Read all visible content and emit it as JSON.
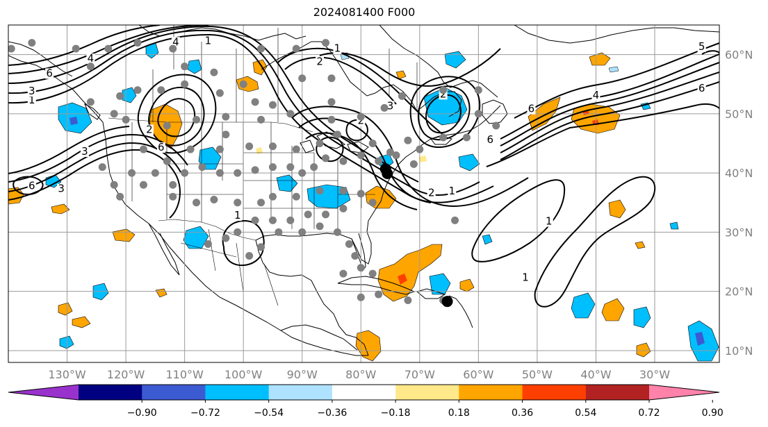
{
  "title": "2024081400 F000",
  "map": {
    "lon_range": [
      -140,
      -19
    ],
    "lat_range": [
      8,
      65
    ],
    "lon_ticks": [
      -130,
      -120,
      -110,
      -100,
      -90,
      -80,
      -70,
      -60,
      -50,
      -40,
      -30
    ],
    "lat_ticks": [
      10,
      20,
      30,
      40,
      50,
      60
    ],
    "lon_labels": [
      "130°W",
      "120°W",
      "110°W",
      "100°W",
      "90°W",
      "80°W",
      "70°W",
      "60°W",
      "50°W",
      "40°W",
      "30°W"
    ],
    "lat_labels": [
      "10°N",
      "20°N",
      "30°N",
      "40°N",
      "50°N",
      "60°N"
    ],
    "grid": true,
    "contour_color": "#000000",
    "contour_labels": [
      {
        "text": "1",
        "lon": -136,
        "lat": 52
      },
      {
        "text": "3",
        "lon": -136,
        "lat": 53.5
      },
      {
        "text": "6",
        "lon": -133,
        "lat": 56.5
      },
      {
        "text": "4",
        "lon": -126,
        "lat": 59
      },
      {
        "text": "1",
        "lon": -106,
        "lat": 62
      },
      {
        "text": "4",
        "lon": -111.5,
        "lat": 61.8
      },
      {
        "text": "2",
        "lon": -116,
        "lat": 47
      },
      {
        "text": "6",
        "lon": -114,
        "lat": 44
      },
      {
        "text": "3",
        "lon": -127,
        "lat": 43.3
      },
      {
        "text": "6",
        "lon": -136,
        "lat": 37.5
      },
      {
        "text": "3",
        "lon": -131,
        "lat": 37
      },
      {
        "text": "2",
        "lon": -87,
        "lat": 58.5
      },
      {
        "text": "1",
        "lon": -84,
        "lat": 60.7
      },
      {
        "text": "2",
        "lon": -80,
        "lat": 48.5
      },
      {
        "text": "3",
        "lon": -75,
        "lat": 51
      },
      {
        "text": "2",
        "lon": -66,
        "lat": 53
      },
      {
        "text": "6",
        "lon": -58,
        "lat": 45.3
      },
      {
        "text": "2",
        "lon": -68,
        "lat": 36.3
      },
      {
        "text": "1",
        "lon": -64.5,
        "lat": 36.6
      },
      {
        "text": "1",
        "lon": -101,
        "lat": 32.5
      },
      {
        "text": "1",
        "lon": -48,
        "lat": 31.5
      },
      {
        "text": "1",
        "lon": -52,
        "lat": 22
      },
      {
        "text": "6",
        "lon": -51,
        "lat": 50.5
      },
      {
        "text": "4",
        "lon": -40,
        "lat": 52.8
      },
      {
        "text": "6",
        "lon": -22,
        "lat": 54
      },
      {
        "text": "5",
        "lon": -22,
        "lat": 61
      }
    ],
    "station_color": "#808080",
    "stations": [
      [
        -139.5,
        61
      ],
      [
        -136,
        62
      ],
      [
        -128.5,
        61
      ],
      [
        -126,
        58
      ],
      [
        -123,
        61
      ],
      [
        -118,
        62
      ],
      [
        -112,
        61
      ],
      [
        -110,
        58
      ],
      [
        -105,
        57
      ],
      [
        -97,
        61
      ],
      [
        -91,
        61
      ],
      [
        -90,
        56
      ],
      [
        -86,
        62
      ],
      [
        -85,
        56
      ],
      [
        -100,
        55
      ],
      [
        -98,
        52
      ],
      [
        -95,
        51.5
      ],
      [
        -104,
        53.5
      ],
      [
        -110,
        55
      ],
      [
        -114,
        54
      ],
      [
        -118,
        54
      ],
      [
        -121,
        53
      ],
      [
        -126,
        52
      ],
      [
        -122,
        50
      ],
      [
        -120,
        49
      ],
      [
        -113,
        48
      ],
      [
        -108,
        49
      ],
      [
        -103,
        49.5
      ],
      [
        -97,
        49
      ],
      [
        -92,
        50
      ],
      [
        -85,
        49
      ],
      [
        -80,
        49.5
      ],
      [
        -76,
        51
      ],
      [
        -73,
        53
      ],
      [
        -66,
        54
      ],
      [
        -60,
        54
      ],
      [
        -60,
        50
      ],
      [
        -57,
        48
      ],
      [
        -62,
        46
      ],
      [
        -66,
        46
      ],
      [
        -70,
        44
      ],
      [
        -74,
        43
      ],
      [
        -77,
        42
      ],
      [
        -80,
        43
      ],
      [
        -83,
        42
      ],
      [
        -86,
        42.5
      ],
      [
        -88,
        41
      ],
      [
        -90,
        40
      ],
      [
        -92,
        41
      ],
      [
        -95,
        41
      ],
      [
        -98,
        40.5
      ],
      [
        -101,
        40
      ],
      [
        -104,
        40
      ],
      [
        -107,
        41
      ],
      [
        -110,
        40
      ],
      [
        -115,
        40
      ],
      [
        -119,
        40
      ],
      [
        -122,
        38
      ],
      [
        -121,
        36
      ],
      [
        -117,
        38
      ],
      [
        -112,
        38
      ],
      [
        -112,
        36
      ],
      [
        -108,
        35
      ],
      [
        -105,
        35.5
      ],
      [
        -101,
        35
      ],
      [
        -97,
        35
      ],
      [
        -95,
        36
      ],
      [
        -91,
        36
      ],
      [
        -87,
        37
      ],
      [
        -83,
        37
      ],
      [
        -80,
        36.5
      ],
      [
        -78,
        35
      ],
      [
        -83,
        34
      ],
      [
        -86,
        33
      ],
      [
        -89,
        33
      ],
      [
        -92,
        32
      ],
      [
        -95,
        32
      ],
      [
        -98,
        32
      ],
      [
        -101,
        30
      ],
      [
        -103,
        29
      ],
      [
        -106,
        28
      ],
      [
        -99,
        26
      ],
      [
        -97,
        27.5
      ],
      [
        -94,
        30
      ],
      [
        -90,
        30
      ],
      [
        -87,
        31
      ],
      [
        -84,
        30
      ],
      [
        -82,
        28
      ],
      [
        -81,
        26
      ],
      [
        -80,
        24
      ],
      [
        -83,
        23
      ],
      [
        -78,
        23
      ],
      [
        -77,
        19.5
      ],
      [
        -72,
        18.5
      ],
      [
        -66,
        18.5
      ],
      [
        -64,
        32
      ],
      [
        -80,
        19
      ],
      [
        -75,
        43.5
      ],
      [
        -71,
        41.5
      ],
      [
        -78,
        45
      ],
      [
        -72,
        45.5
      ],
      [
        -85,
        52
      ],
      [
        -91,
        44
      ],
      [
        -95,
        44.5
      ],
      [
        -99,
        44.5
      ],
      [
        -104,
        44
      ],
      [
        -109,
        44
      ],
      [
        -113,
        42
      ],
      [
        -117,
        44
      ],
      [
        -124,
        41
      ],
      [
        -103,
        46.5
      ],
      [
        -87,
        45
      ],
      [
        -84,
        46.5
      ]
    ],
    "big_dots": [
      [
        -75.8,
        40.7
      ],
      [
        -75.5,
        39.9
      ],
      [
        -65.3,
        18.3
      ]
    ],
    "color_fills": {
      "orange": "#FFA500",
      "light_yellow": "#FFE98A",
      "red_orange": "#FF3F00",
      "deep_sky_blue": "#00BFFF",
      "light_sky_blue": "#AEE2FF",
      "royal_blue": "#3C5AD2"
    }
  },
  "colorbar": {
    "tick_labels": [
      "−0.90",
      "−0.72",
      "−0.54",
      "−0.36",
      "−0.18",
      "0.18",
      "0.36",
      "0.54",
      "0.72",
      "0.90"
    ],
    "colors": [
      "#9932CC",
      "#000080",
      "#3C5AD2",
      "#00BFFF",
      "#AEE2FF",
      "#FFFFFF",
      "#FFE98A",
      "#FFA500",
      "#FF3F00",
      "#B22222",
      "#FF82AB"
    ]
  }
}
